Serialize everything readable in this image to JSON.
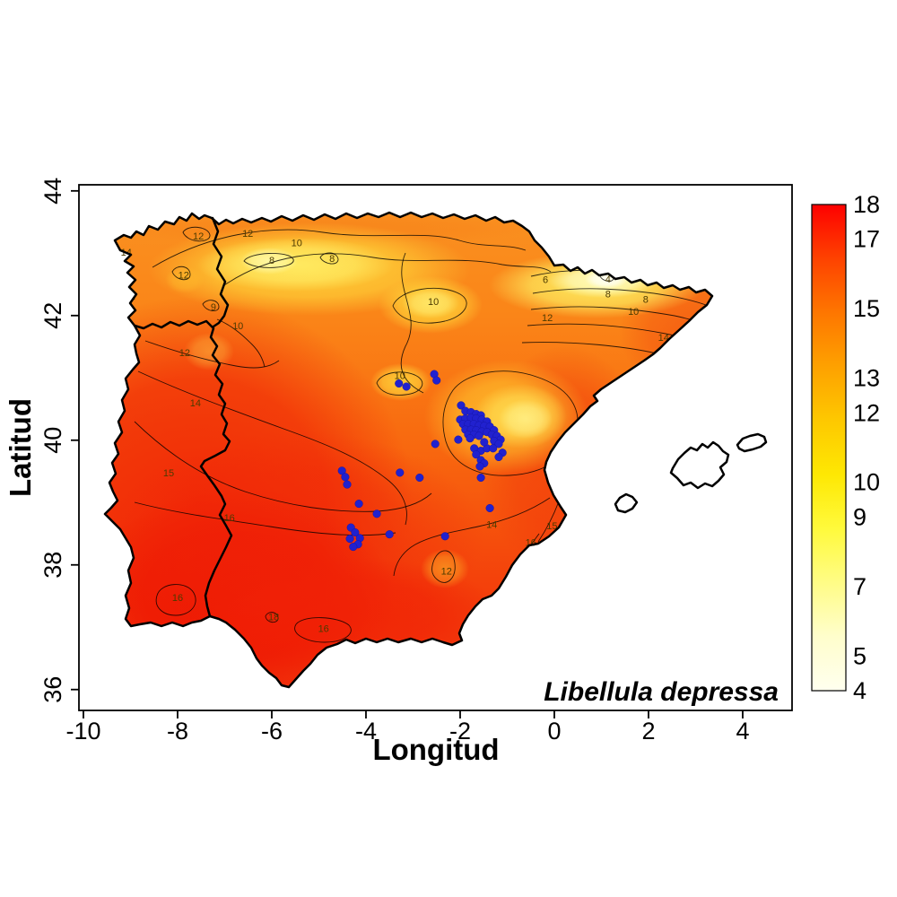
{
  "figure": {
    "kind": "species distribution contour map",
    "background": "#ffffff"
  },
  "axes": {
    "x": {
      "label": "Longitud",
      "ticks": [
        -10,
        -8,
        -6,
        -4,
        -2,
        0,
        2,
        4
      ]
    },
    "y": {
      "label": "Latitud",
      "ticks": [
        36,
        38,
        40,
        42,
        44
      ]
    }
  },
  "annotation": {
    "species_label": "Libellula depressa"
  },
  "colorbar": {
    "min": 4,
    "max": 18,
    "labels": [
      18,
      17,
      15,
      13,
      12,
      10,
      9,
      7,
      5,
      4
    ],
    "gradient_top_to_bottom": [
      "#FE0000",
      "#FE4200",
      "#FE7600",
      "#FEA100",
      "#FEC800",
      "#FEE803",
      "#FFFA3C",
      "#FFFC86",
      "#FFFECC",
      "#FFFFEF"
    ]
  },
  "chart_data": {
    "type": "heatmap",
    "subtype": "interpolated contour surface over Iberian Peninsula with occurrence scatter",
    "title": "",
    "xlabel": "Longitud",
    "ylabel": "Latitud",
    "xlim": [
      -10.095,
      5.048
    ],
    "ylim": [
      35.665,
      44.098
    ],
    "value_range": [
      4,
      18
    ],
    "legend_position": "right colorbar",
    "grid": false,
    "point_color": "#2121CF",
    "surface_palette_low_to_high": [
      "#FFFFEF",
      "#FFFC86",
      "#FFFA3C",
      "#FEC800",
      "#FE7600",
      "#FE4200",
      "#FE0000"
    ],
    "contour_labels": [
      {
        "value": 14,
        "lon": -9.09,
        "lat": 43.02
      },
      {
        "value": 12,
        "lon": -7.56,
        "lat": 43.28
      },
      {
        "value": 12,
        "lon": -6.51,
        "lat": 43.32
      },
      {
        "value": 10,
        "lon": -5.47,
        "lat": 43.17
      },
      {
        "value": 8,
        "lon": -6.0,
        "lat": 42.89
      },
      {
        "value": 8,
        "lon": -4.72,
        "lat": 42.92
      },
      {
        "value": 12,
        "lon": -7.87,
        "lat": 42.65
      },
      {
        "value": 9,
        "lon": -7.24,
        "lat": 42.14
      },
      {
        "value": 10,
        "lon": -6.72,
        "lat": 41.84
      },
      {
        "value": 12,
        "lon": -7.85,
        "lat": 41.41
      },
      {
        "value": 10,
        "lon": -2.57,
        "lat": 42.23
      },
      {
        "value": 6,
        "lon": -0.19,
        "lat": 42.58
      },
      {
        "value": 4,
        "lon": 1.14,
        "lat": 42.59
      },
      {
        "value": 8,
        "lon": 1.14,
        "lat": 42.35
      },
      {
        "value": 8,
        "lon": 1.94,
        "lat": 42.26
      },
      {
        "value": 10,
        "lon": 1.68,
        "lat": 42.07
      },
      {
        "value": 12,
        "lon": -0.15,
        "lat": 41.97
      },
      {
        "value": 14,
        "lon": 2.32,
        "lat": 41.65
      },
      {
        "value": 10,
        "lon": -3.28,
        "lat": 41.04
      },
      {
        "value": 10,
        "lon": -1.49,
        "lat": 40.13
      },
      {
        "value": 14,
        "lon": -7.62,
        "lat": 40.6
      },
      {
        "value": 15,
        "lon": -8.19,
        "lat": 39.48
      },
      {
        "value": 16,
        "lon": -6.9,
        "lat": 38.76
      },
      {
        "value": 14,
        "lon": -1.33,
        "lat": 38.65
      },
      {
        "value": 15,
        "lon": -0.05,
        "lat": 38.63
      },
      {
        "value": 16,
        "lon": -0.5,
        "lat": 38.36
      },
      {
        "value": 12,
        "lon": -2.29,
        "lat": 37.9
      },
      {
        "value": 16,
        "lon": -8.0,
        "lat": 37.48
      },
      {
        "value": 18,
        "lon": -5.96,
        "lat": 37.17
      },
      {
        "value": 16,
        "lon": -4.9,
        "lat": 36.98
      }
    ],
    "occurrences": {
      "species": "Libellula depressa",
      "points_lon_lat": [
        [
          -3.3,
          40.91
        ],
        [
          -3.14,
          40.86
        ],
        [
          -2.55,
          41.06
        ],
        [
          -2.5,
          40.96
        ],
        [
          -1.98,
          40.56
        ],
        [
          -1.89,
          40.47
        ],
        [
          -1.77,
          40.45
        ],
        [
          -1.66,
          40.42
        ],
        [
          -1.56,
          40.4
        ],
        [
          -2.0,
          40.33
        ],
        [
          -1.89,
          40.35
        ],
        [
          -1.77,
          40.36
        ],
        [
          -1.66,
          40.35
        ],
        [
          -1.54,
          40.33
        ],
        [
          -1.43,
          40.3
        ],
        [
          -1.94,
          40.26
        ],
        [
          -1.83,
          40.26
        ],
        [
          -1.71,
          40.26
        ],
        [
          -1.6,
          40.24
        ],
        [
          -1.49,
          40.23
        ],
        [
          -1.37,
          40.22
        ],
        [
          -1.89,
          40.17
        ],
        [
          -1.77,
          40.17
        ],
        [
          -1.66,
          40.16
        ],
        [
          -1.54,
          40.14
        ],
        [
          -1.43,
          40.13
        ],
        [
          -1.83,
          40.09
        ],
        [
          -1.71,
          40.09
        ],
        [
          -1.6,
          40.07
        ],
        [
          -1.28,
          40.16
        ],
        [
          -1.33,
          40.09
        ],
        [
          -1.22,
          40.07
        ],
        [
          -1.14,
          40.01
        ],
        [
          -1.28,
          39.99
        ],
        [
          -1.18,
          39.94
        ],
        [
          -2.04,
          40.01
        ],
        [
          -1.79,
          40.03
        ],
        [
          -1.7,
          39.87
        ],
        [
          -1.56,
          39.83
        ],
        [
          -1.43,
          39.87
        ],
        [
          -1.49,
          39.97
        ],
        [
          -1.3,
          39.87
        ],
        [
          -1.1,
          39.8
        ],
        [
          -1.18,
          39.73
        ],
        [
          -1.66,
          39.77
        ],
        [
          -1.56,
          39.68
        ],
        [
          -1.49,
          39.63
        ],
        [
          -1.58,
          39.58
        ],
        [
          -1.56,
          39.4
        ],
        [
          -2.53,
          39.94
        ],
        [
          -3.28,
          39.48
        ],
        [
          -2.86,
          39.4
        ],
        [
          -4.51,
          39.51
        ],
        [
          -4.44,
          39.41
        ],
        [
          -4.4,
          39.29
        ],
        [
          -4.15,
          38.98
        ],
        [
          -3.77,
          38.82
        ],
        [
          -3.5,
          38.49
        ],
        [
          -2.32,
          38.46
        ],
        [
          -1.37,
          38.91
        ],
        [
          -4.32,
          38.6
        ],
        [
          -4.23,
          38.52
        ],
        [
          -4.13,
          38.43
        ],
        [
          -4.34,
          38.42
        ],
        [
          -4.17,
          38.33
        ],
        [
          -4.27,
          38.29
        ]
      ]
    }
  }
}
